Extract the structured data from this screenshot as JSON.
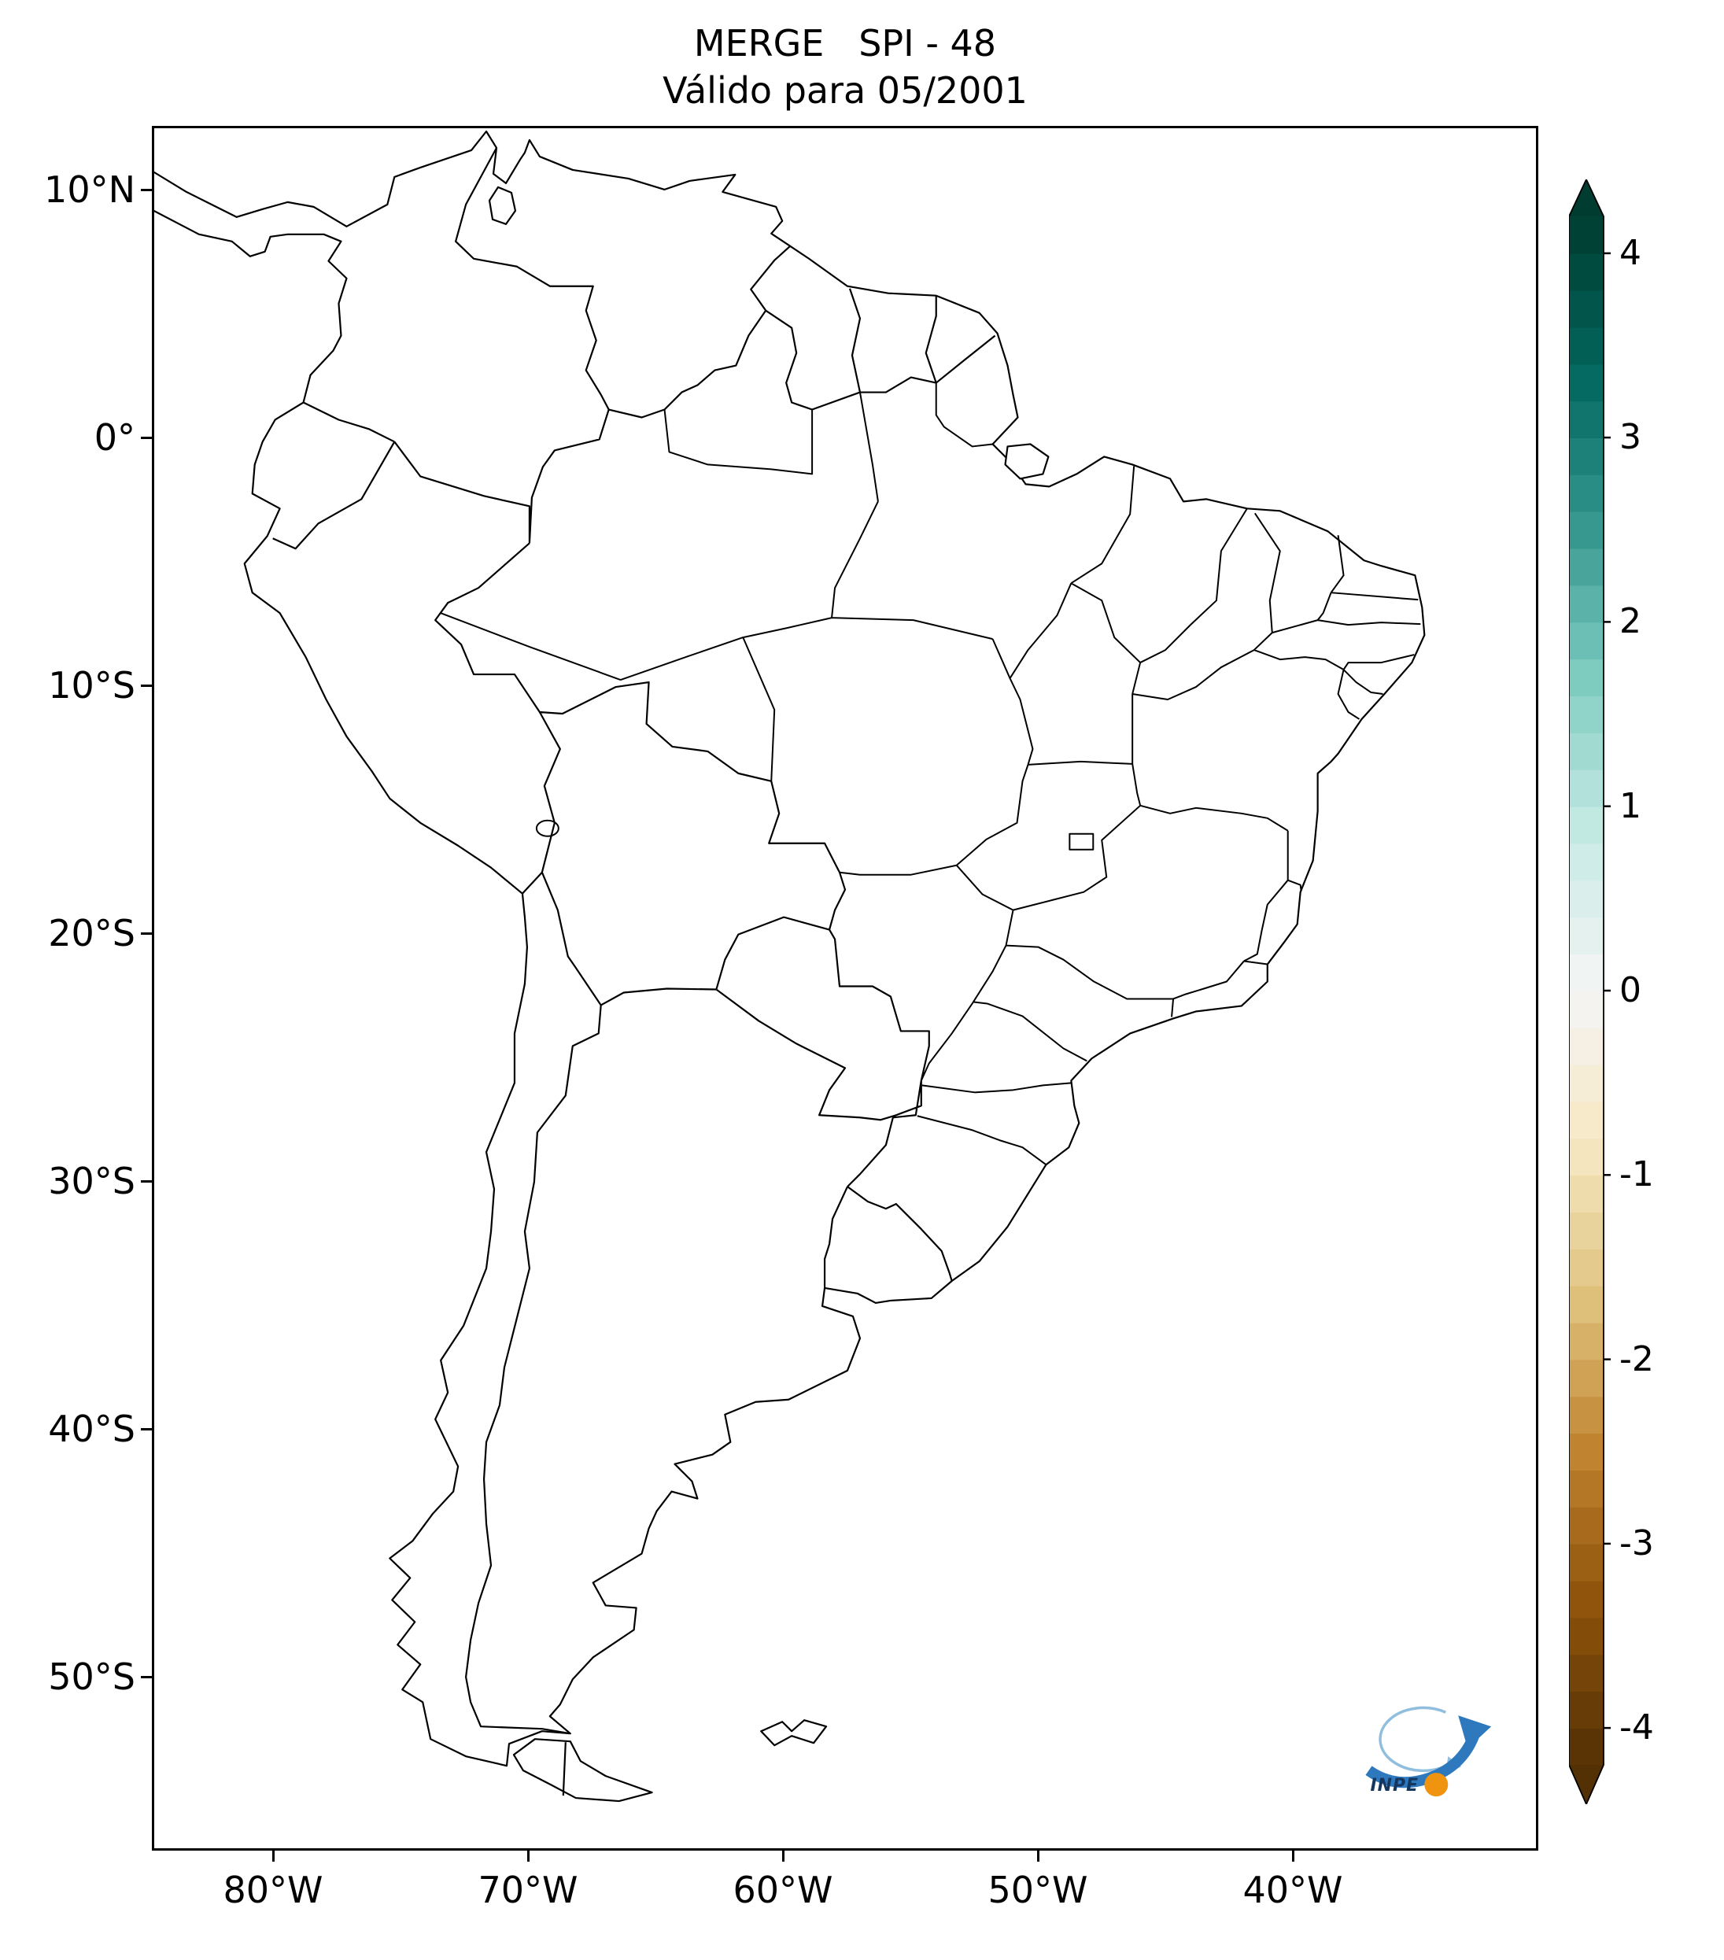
{
  "figure": {
    "title_line1": "MERGE   SPI - 48",
    "title_line2": "Válido para 05/2001",
    "background": "#ffffff",
    "frame_color": "#000000"
  },
  "map": {
    "line_color": "#000000",
    "land_fill": "#ffffff"
  },
  "axes": {
    "y_ticks": [
      {
        "label": "10°N",
        "lat": 10
      },
      {
        "label": "0°",
        "lat": 0
      },
      {
        "label": "10°S",
        "lat": -10
      },
      {
        "label": "20°S",
        "lat": -20
      },
      {
        "label": "30°S",
        "lat": -30
      },
      {
        "label": "40°S",
        "lat": -40
      },
      {
        "label": "50°S",
        "lat": -50
      }
    ],
    "x_ticks": [
      {
        "label": "80°W",
        "lon": -80
      },
      {
        "label": "70°W",
        "lon": -70
      },
      {
        "label": "60°W",
        "lon": -60
      },
      {
        "label": "50°W",
        "lon": -50
      },
      {
        "label": "40°W",
        "lon": -40
      }
    ]
  },
  "colorbar": {
    "min": -4.2,
    "max": 4.2,
    "step": 0.2,
    "ticks": [
      {
        "label": "4",
        "value": 4
      },
      {
        "label": "3",
        "value": 3
      },
      {
        "label": "2",
        "value": 2
      },
      {
        "label": "1",
        "value": 1
      },
      {
        "label": "0",
        "value": 0
      },
      {
        "label": "-1",
        "value": -1
      },
      {
        "label": "-2",
        "value": -2
      },
      {
        "label": "-3",
        "value": -3
      },
      {
        "label": "-4",
        "value": -4
      }
    ],
    "colormap_anchors": [
      "#543005",
      "#8c510a",
      "#bf812d",
      "#dfc27d",
      "#f6e8c3",
      "#f5f5f5",
      "#c7eae5",
      "#80cdc1",
      "#35978f",
      "#01665e",
      "#003c30"
    ]
  },
  "logo": {
    "text": "INPE",
    "orange": "#f0930e",
    "blue": "#2e78bd",
    "light_blue": "#8fbede",
    "navy": "#14365f"
  }
}
